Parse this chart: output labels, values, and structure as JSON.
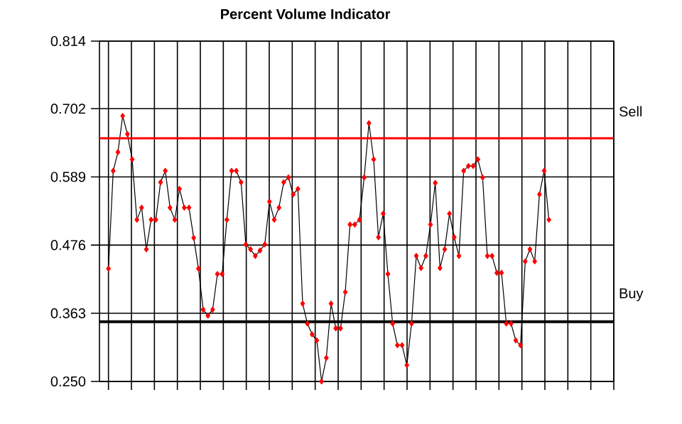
{
  "chart_data": {
    "type": "line",
    "title": "Percent Volume Indicator",
    "categories": [
      null,
      null,
      null,
      null,
      null,
      null,
      null,
      null,
      null,
      null,
      null,
      null,
      null,
      null,
      null,
      null,
      null,
      null,
      null,
      null,
      null,
      null,
      null,
      null,
      null,
      null,
      null,
      null,
      null,
      null,
      null,
      null,
      null,
      null,
      null,
      null,
      null,
      null,
      null,
      null,
      null,
      null,
      null,
      null,
      null,
      null,
      null,
      null,
      null,
      null,
      null,
      null,
      null,
      null,
      null,
      null,
      null,
      null,
      null,
      null,
      null,
      null,
      null,
      null,
      null,
      null,
      null,
      null,
      null,
      null,
      null,
      null,
      null,
      null,
      null,
      null,
      null,
      null,
      null,
      null,
      null,
      null,
      null,
      null,
      null,
      null,
      null,
      null,
      null,
      null,
      null,
      null,
      null,
      null
    ],
    "series": [
      {
        "color": "#000000",
        "values": [
          0.437,
          0.599,
          0.63,
          0.69,
          0.66,
          0.618,
          0.518,
          0.538,
          0.469,
          0.518,
          0.518,
          0.58,
          0.599,
          0.538,
          0.518,
          0.569,
          0.538,
          0.538,
          0.488,
          0.437,
          0.369,
          0.359,
          0.369,
          0.428,
          0.428,
          0.518,
          0.599,
          0.599,
          0.58,
          0.477,
          0.469,
          0.458,
          0.467,
          0.477,
          0.548,
          0.518,
          0.538,
          0.58,
          0.588,
          0.56,
          0.569,
          0.379,
          0.346,
          0.328,
          0.318,
          0.25,
          0.289,
          0.379,
          0.338,
          0.338,
          0.398,
          0.51,
          0.51,
          0.518,
          0.588,
          0.678,
          0.618,
          0.489,
          0.528,
          0.428,
          0.346,
          0.31,
          0.31,
          0.277,
          0.346,
          0.458,
          0.438,
          0.458,
          0.51,
          0.579,
          0.438,
          0.469,
          0.528,
          0.489,
          0.458,
          0.599,
          0.607,
          0.607,
          0.618,
          0.588,
          0.458,
          0.458,
          0.43,
          0.43,
          0.346,
          0.346,
          0.318,
          0.31,
          0.449,
          0.469,
          0.449,
          0.56,
          0.599,
          0.518
        ]
      }
    ],
    "marker": "diamond",
    "ylim": [
      0.25,
      0.814
    ],
    "yticks": [
      {
        "value": 0.25,
        "label": "0.250"
      },
      {
        "value": 0.363,
        "label": "0.363"
      },
      {
        "value": 0.476,
        "label": "0.476"
      },
      {
        "value": 0.589,
        "label": "0.589"
      },
      {
        "value": 0.702,
        "label": "0.702"
      },
      {
        "value": 0.814,
        "label": "0.814"
      }
    ],
    "tick_labels": "y",
    "grid": true,
    "ref_lines": [
      {
        "axis": "y",
        "value": 0.653,
        "label": "Sell",
        "color": "#ff0000"
      },
      {
        "axis": "y",
        "value": 0.349,
        "label": "Buy",
        "color": "#000000"
      }
    ]
  }
}
